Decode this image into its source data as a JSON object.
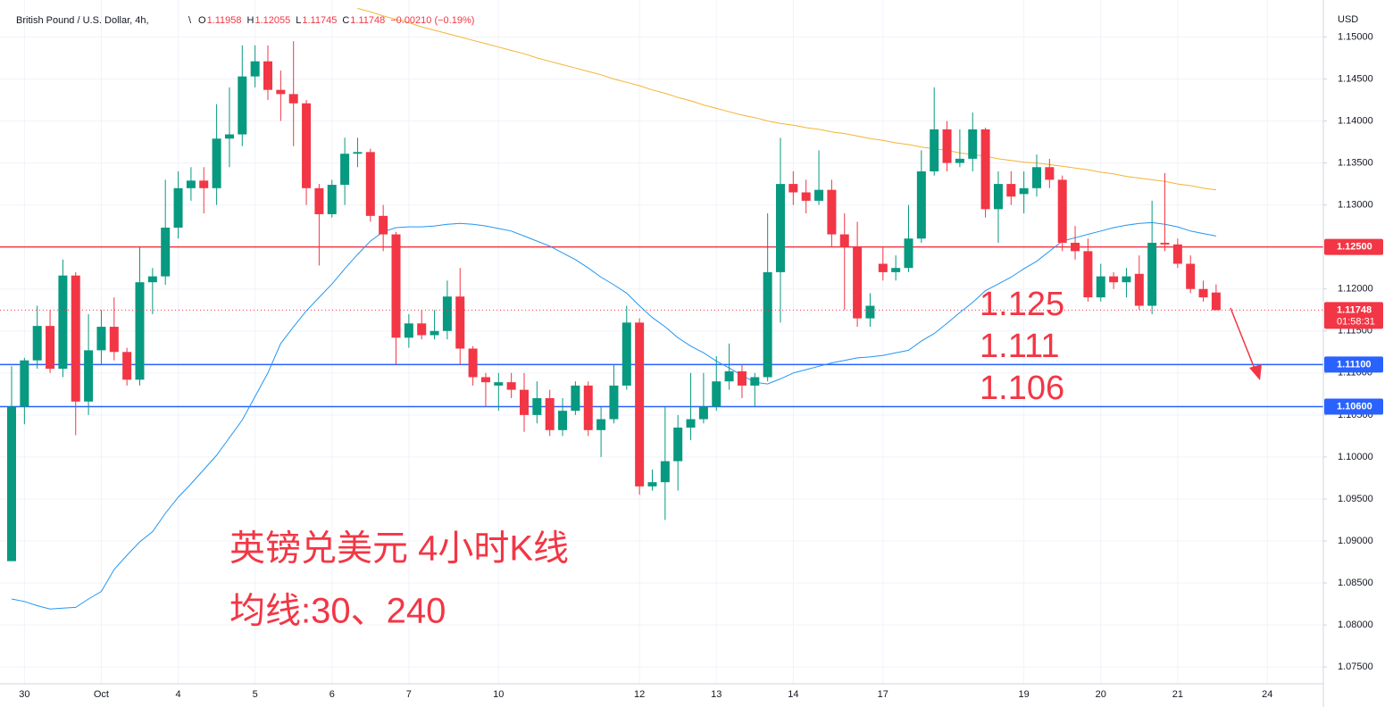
{
  "chart_data": {
    "type": "candlestick",
    "title": "British Pound / U.S. Dollar, 4h,",
    "ohlc_header": [
      {
        "label": "O",
        "value": 1.11958
      },
      {
        "label": "H",
        "value": 1.12055
      },
      {
        "label": "L",
        "value": 1.11745
      },
      {
        "label": "C",
        "value": 1.11748
      }
    ],
    "change_text": "−0.00210 (−0.19%)",
    "y_axis_label": "USD",
    "categories": [
      null,
      "30",
      null,
      null,
      null,
      null,
      null,
      "Oct",
      null,
      null,
      null,
      null,
      null,
      "4",
      null,
      null,
      null,
      null,
      null,
      "5",
      null,
      null,
      null,
      null,
      null,
      "6",
      null,
      null,
      null,
      null,
      null,
      "7",
      null,
      null,
      null,
      null,
      null,
      null,
      "10",
      null,
      null,
      null,
      null,
      null,
      null,
      null,
      null,
      null,
      null,
      "12",
      null,
      null,
      null,
      null,
      null,
      "13",
      null,
      null,
      null,
      null,
      null,
      "14",
      null,
      null,
      null,
      null,
      null,
      null,
      "17",
      null,
      null,
      null,
      null,
      null,
      null,
      null,
      null,
      null,
      null,
      "19",
      null,
      null,
      null,
      null,
      null,
      "20",
      null,
      null,
      null,
      null,
      null,
      "21",
      null,
      null,
      null,
      null,
      null,
      null,
      "24"
    ],
    "open": [
      1.0876,
      1.106,
      1.1115,
      1.1156,
      1.1105,
      1.1216,
      1.1066,
      1.1127,
      1.1155,
      1.1125,
      1.1092,
      1.1208,
      1.1215,
      1.1273,
      1.132,
      1.1329,
      1.132,
      1.1379,
      1.1384,
      1.1453,
      1.1471,
      1.1437,
      1.1432,
      1.1421,
      1.132,
      1.1289,
      1.1324,
      1.1361,
      1.1363,
      1.1287,
      1.1265,
      1.1142,
      1.1159,
      1.1145,
      1.115,
      1.1191,
      1.1129,
      1.1095,
      1.1085,
      1.1089,
      1.108,
      1.105,
      1.107,
      1.1032,
      1.1055,
      1.1085,
      1.1032,
      1.1045,
      1.1085,
      1.116,
      1.0965,
      1.097,
      1.0995,
      1.1035,
      1.1045,
      1.106,
      1.109,
      1.1102,
      1.1085,
      1.1095,
      1.122,
      1.1325,
      1.1315,
      1.1305,
      1.1318,
      1.1265,
      1.125,
      1.1165,
      1.123,
      1.122,
      1.1225,
      1.126,
      1.134,
      1.139,
      1.135,
      1.1355,
      1.139,
      1.1295,
      1.1325,
      1.1313,
      1.132,
      1.1345,
      1.133,
      1.1255,
      1.1245,
      1.119,
      1.1215,
      1.1208,
      1.1218,
      1.118,
      1.1255,
      1.1253,
      1.123,
      1.12,
      1.11958,
      null,
      null,
      null,
      null
    ],
    "high": [
      1.1108,
      1.1118,
      1.118,
      1.1175,
      1.1235,
      1.122,
      1.117,
      1.1175,
      1.119,
      1.113,
      1.125,
      1.1225,
      1.133,
      1.134,
      1.1345,
      1.1345,
      1.142,
      1.144,
      1.149,
      1.149,
      1.149,
      1.146,
      1.1495,
      1.1425,
      1.1325,
      1.133,
      1.138,
      1.138,
      1.1367,
      1.13,
      1.1268,
      1.117,
      1.1175,
      1.1175,
      1.121,
      1.1225,
      1.1132,
      1.11,
      1.11,
      1.11,
      1.11,
      1.109,
      1.108,
      1.107,
      1.109,
      1.109,
      1.106,
      1.111,
      1.118,
      1.1165,
      1.0985,
      1.106,
      1.105,
      1.11,
      1.11,
      1.112,
      1.1135,
      1.111,
      1.11,
      1.129,
      1.138,
      1.134,
      1.133,
      1.1365,
      1.133,
      1.129,
      1.128,
      1.1195,
      1.125,
      1.124,
      1.13,
      1.1365,
      1.144,
      1.14,
      1.139,
      1.141,
      1.1392,
      1.134,
      1.134,
      1.134,
      1.136,
      1.1355,
      1.1335,
      1.1275,
      1.126,
      1.123,
      1.122,
      1.1225,
      1.124,
      1.1305,
      1.1338,
      1.126,
      1.124,
      1.121,
      1.12055,
      null,
      null,
      null,
      null
    ],
    "low": [
      1.0876,
      1.1039,
      1.1105,
      1.11,
      1.1095,
      1.1026,
      1.105,
      1.111,
      1.1115,
      1.1085,
      1.1085,
      1.117,
      1.1205,
      1.126,
      1.1305,
      1.129,
      1.13,
      1.1345,
      1.137,
      1.144,
      1.1425,
      1.14,
      1.137,
      1.13,
      1.1228,
      1.1285,
      1.13,
      1.1345,
      1.128,
      1.1245,
      1.111,
      1.113,
      1.114,
      1.114,
      1.114,
      1.111,
      1.1085,
      1.106,
      1.1055,
      1.107,
      1.103,
      1.104,
      1.1025,
      1.1025,
      1.105,
      1.1025,
      1.1,
      1.104,
      1.108,
      1.0955,
      1.096,
      1.0925,
      1.096,
      1.102,
      1.104,
      1.1055,
      1.108,
      1.107,
      1.106,
      1.109,
      1.116,
      1.13,
      1.129,
      1.13,
      1.125,
      1.1175,
      1.1155,
      1.1155,
      1.121,
      1.121,
      1.122,
      1.1255,
      1.1335,
      1.134,
      1.1345,
      1.134,
      1.1285,
      1.1255,
      1.13,
      1.129,
      1.131,
      1.132,
      1.1245,
      1.1235,
      1.1185,
      1.1185,
      1.12,
      1.119,
      1.1175,
      1.117,
      1.1245,
      1.1225,
      1.1195,
      1.1185,
      1.11745,
      null,
      null,
      null,
      null
    ],
    "close": [
      1.106,
      1.1115,
      1.1156,
      1.1105,
      1.1216,
      1.1066,
      1.1127,
      1.1155,
      1.1125,
      1.1092,
      1.1208,
      1.1215,
      1.1273,
      1.132,
      1.1329,
      1.132,
      1.1379,
      1.1384,
      1.1453,
      1.1471,
      1.1437,
      1.1432,
      1.1421,
      1.132,
      1.1289,
      1.1324,
      1.1361,
      1.1363,
      1.1287,
      1.1265,
      1.1142,
      1.1159,
      1.1145,
      1.115,
      1.1191,
      1.1129,
      1.1095,
      1.1089,
      1.1089,
      1.108,
      1.105,
      1.107,
      1.1032,
      1.1055,
      1.1085,
      1.1032,
      1.1045,
      1.1085,
      1.116,
      1.0965,
      1.097,
      1.0995,
      1.1035,
      1.1045,
      1.106,
      1.109,
      1.1102,
      1.1085,
      1.1095,
      1.122,
      1.1325,
      1.1315,
      1.1305,
      1.1318,
      1.1265,
      1.125,
      1.1165,
      1.118,
      1.122,
      1.1225,
      1.126,
      1.134,
      1.139,
      1.135,
      1.1355,
      1.139,
      1.1295,
      1.1325,
      1.131,
      1.132,
      1.1345,
      1.133,
      1.1255,
      1.1245,
      1.119,
      1.1215,
      1.1208,
      1.1215,
      1.118,
      1.1255,
      1.1253,
      1.123,
      1.12,
      1.119,
      1.11748,
      null,
      null,
      null,
      null
    ],
    "up_color": "#089981",
    "down_color": "#f23645",
    "lines": [
      {
        "color": "#2196f3",
        "values": [
          1.0831,
          1.0828,
          1.0823,
          1.0819,
          1.082,
          1.0821,
          1.0831,
          1.084,
          1.0866,
          1.0883,
          1.0899,
          1.0911,
          1.0933,
          1.0952,
          1.0968,
          1.0985,
          1.1002,
          1.1023,
          1.1044,
          1.1072,
          1.11,
          1.1135,
          1.1155,
          1.1174,
          1.119,
          1.1206,
          1.1224,
          1.1241,
          1.1257,
          1.1268,
          1.1273,
          1.1274,
          1.1274,
          1.1275,
          1.1277,
          1.1278,
          1.1277,
          1.1275,
          1.1272,
          1.1269,
          1.1263,
          1.1257,
          1.1251,
          1.1243,
          1.1235,
          1.1225,
          1.1214,
          1.1205,
          1.1195,
          1.118,
          1.1166,
          1.1155,
          1.1142,
          1.1132,
          1.1124,
          1.1114,
          1.1106,
          1.1097,
          1.1089,
          1.1087,
          1.1093,
          1.11,
          1.1104,
          1.1108,
          1.1112,
          1.1115,
          1.1118,
          1.1119,
          1.1121,
          1.1124,
          1.1127,
          1.1138,
          1.1147,
          1.1159,
          1.1172,
          1.1184,
          1.1198,
          1.1206,
          1.1214,
          1.1224,
          1.1233,
          1.1245,
          1.1257,
          1.1261,
          1.1265,
          1.1269,
          1.1273,
          1.1276,
          1.1278,
          1.1279,
          1.1277,
          1.1274,
          1.1269,
          1.1266,
          1.1263,
          null,
          null,
          null,
          null
        ]
      },
      {
        "color": "#f5b335",
        "values": [
          null,
          null,
          null,
          null,
          null,
          null,
          null,
          null,
          null,
          null,
          null,
          null,
          null,
          null,
          null,
          null,
          null,
          null,
          null,
          null,
          null,
          null,
          null,
          null,
          null,
          null,
          null,
          1.1534,
          1.153,
          1.1525,
          1.1521,
          1.1517,
          1.1512,
          1.1508,
          1.1504,
          1.15,
          1.1496,
          1.1492,
          1.1488,
          1.1484,
          1.148,
          1.1475,
          1.1471,
          1.1467,
          1.1463,
          1.1459,
          1.1455,
          1.145,
          1.1446,
          1.1442,
          1.1437,
          1.1433,
          1.1428,
          1.1424,
          1.1419,
          1.1415,
          1.1411,
          1.1407,
          1.1404,
          1.14,
          1.1397,
          1.1395,
          1.1392,
          1.139,
          1.1387,
          1.1385,
          1.1382,
          1.1379,
          1.1377,
          1.1374,
          1.1372,
          1.1369,
          1.1367,
          1.1365,
          1.1362,
          1.136,
          1.1358,
          1.1355,
          1.1353,
          1.1351,
          1.135,
          1.1348,
          1.1346,
          1.1344,
          1.1342,
          1.1339,
          1.1337,
          1.1334,
          1.1332,
          1.133,
          1.1328,
          1.1325,
          1.1323,
          1.132,
          1.1318,
          null,
          null,
          null,
          null
        ]
      }
    ],
    "levels": [
      {
        "value": 1.125,
        "label": "1.12500",
        "color": "#f23645"
      },
      {
        "value": 1.111,
        "label": "1.11100",
        "color": "#2962ff"
      },
      {
        "value": 1.106,
        "label": "1.10600",
        "color": "#2962ff"
      }
    ],
    "last_price": 1.11748,
    "countdown": "01:58:31",
    "annotations": [
      "1.125",
      "1.111",
      "1.106"
    ],
    "caption_lines": [
      "英镑兑美元 4小时K线",
      "均线:30、240"
    ],
    "ylim": [
      1.073,
      1.1544
    ],
    "yticks": [
      {
        "value": 1.075,
        "label": "1.07500"
      },
      {
        "value": 1.08,
        "label": "1.08000"
      },
      {
        "value": 1.085,
        "label": "1.08500"
      },
      {
        "value": 1.09,
        "label": "1.09000"
      },
      {
        "value": 1.095,
        "label": "1.09500"
      },
      {
        "value": 1.1,
        "label": "1.10000"
      },
      {
        "value": 1.105,
        "label": "1.10500"
      },
      {
        "value": 1.11,
        "label": "1.11000"
      },
      {
        "value": 1.115,
        "label": "1.11500"
      },
      {
        "value": 1.12,
        "label": "1.12000"
      },
      {
        "value": 1.125,
        "label": "1.12500"
      },
      {
        "value": 1.13,
        "label": "1.13000"
      },
      {
        "value": 1.135,
        "label": "1.13500"
      },
      {
        "value": 1.14,
        "label": "1.14000"
      },
      {
        "value": 1.145,
        "label": "1.14500"
      },
      {
        "value": 1.15,
        "label": "1.15000"
      }
    ],
    "grid": true
  }
}
